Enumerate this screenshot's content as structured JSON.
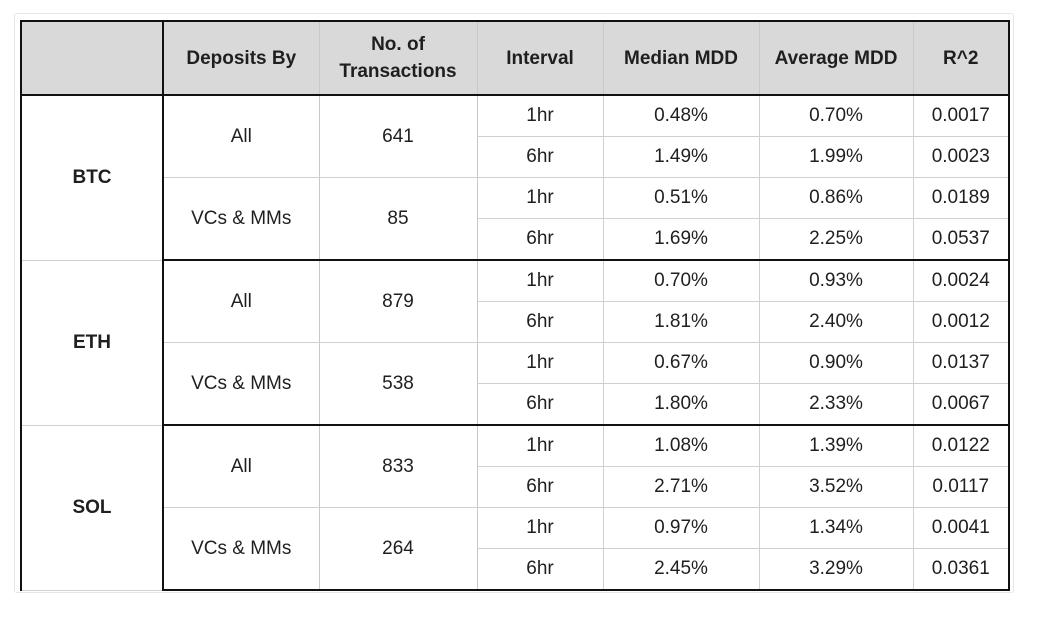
{
  "table": {
    "headers": [
      "",
      "Deposits By",
      "No. of\nTransactions",
      "Interval",
      "Median MDD",
      "Average MDD",
      "R^2"
    ],
    "groups": [
      {
        "asset": "BTC",
        "subgroups": [
          {
            "deposits_by": "All",
            "transactions": "641",
            "rows": [
              {
                "interval": "1hr",
                "median": "0.48%",
                "average": "0.70%",
                "r2": "0.0017"
              },
              {
                "interval": "6hr",
                "median": "1.49%",
                "average": "1.99%",
                "r2": "0.0023"
              }
            ]
          },
          {
            "deposits_by": "VCs & MMs",
            "transactions": "85",
            "rows": [
              {
                "interval": "1hr",
                "median": "0.51%",
                "average": "0.86%",
                "r2": "0.0189"
              },
              {
                "interval": "6hr",
                "median": "1.69%",
                "average": "2.25%",
                "r2": "0.0537"
              }
            ]
          }
        ]
      },
      {
        "asset": "ETH",
        "subgroups": [
          {
            "deposits_by": "All",
            "transactions": "879",
            "rows": [
              {
                "interval": "1hr",
                "median": "0.70%",
                "average": "0.93%",
                "r2": "0.0024"
              },
              {
                "interval": "6hr",
                "median": "1.81%",
                "average": "2.40%",
                "r2": "0.0012"
              }
            ]
          },
          {
            "deposits_by": "VCs & MMs",
            "transactions": "538",
            "rows": [
              {
                "interval": "1hr",
                "median": "0.67%",
                "average": "0.90%",
                "r2": "0.0137"
              },
              {
                "interval": "6hr",
                "median": "1.80%",
                "average": "2.33%",
                "r2": "0.0067"
              }
            ]
          }
        ]
      },
      {
        "asset": "SOL",
        "subgroups": [
          {
            "deposits_by": "All",
            "transactions": "833",
            "rows": [
              {
                "interval": "1hr",
                "median": "1.08%",
                "average": "1.39%",
                "r2": "0.0122"
              },
              {
                "interval": "6hr",
                "median": "2.71%",
                "average": "3.52%",
                "r2": "0.0117"
              }
            ]
          },
          {
            "deposits_by": "VCs & MMs",
            "transactions": "264",
            "rows": [
              {
                "interval": "1hr",
                "median": "0.97%",
                "average": "1.34%",
                "r2": "0.0041"
              },
              {
                "interval": "6hr",
                "median": "2.45%",
                "average": "3.29%",
                "r2": "0.0361"
              }
            ]
          }
        ]
      }
    ]
  }
}
